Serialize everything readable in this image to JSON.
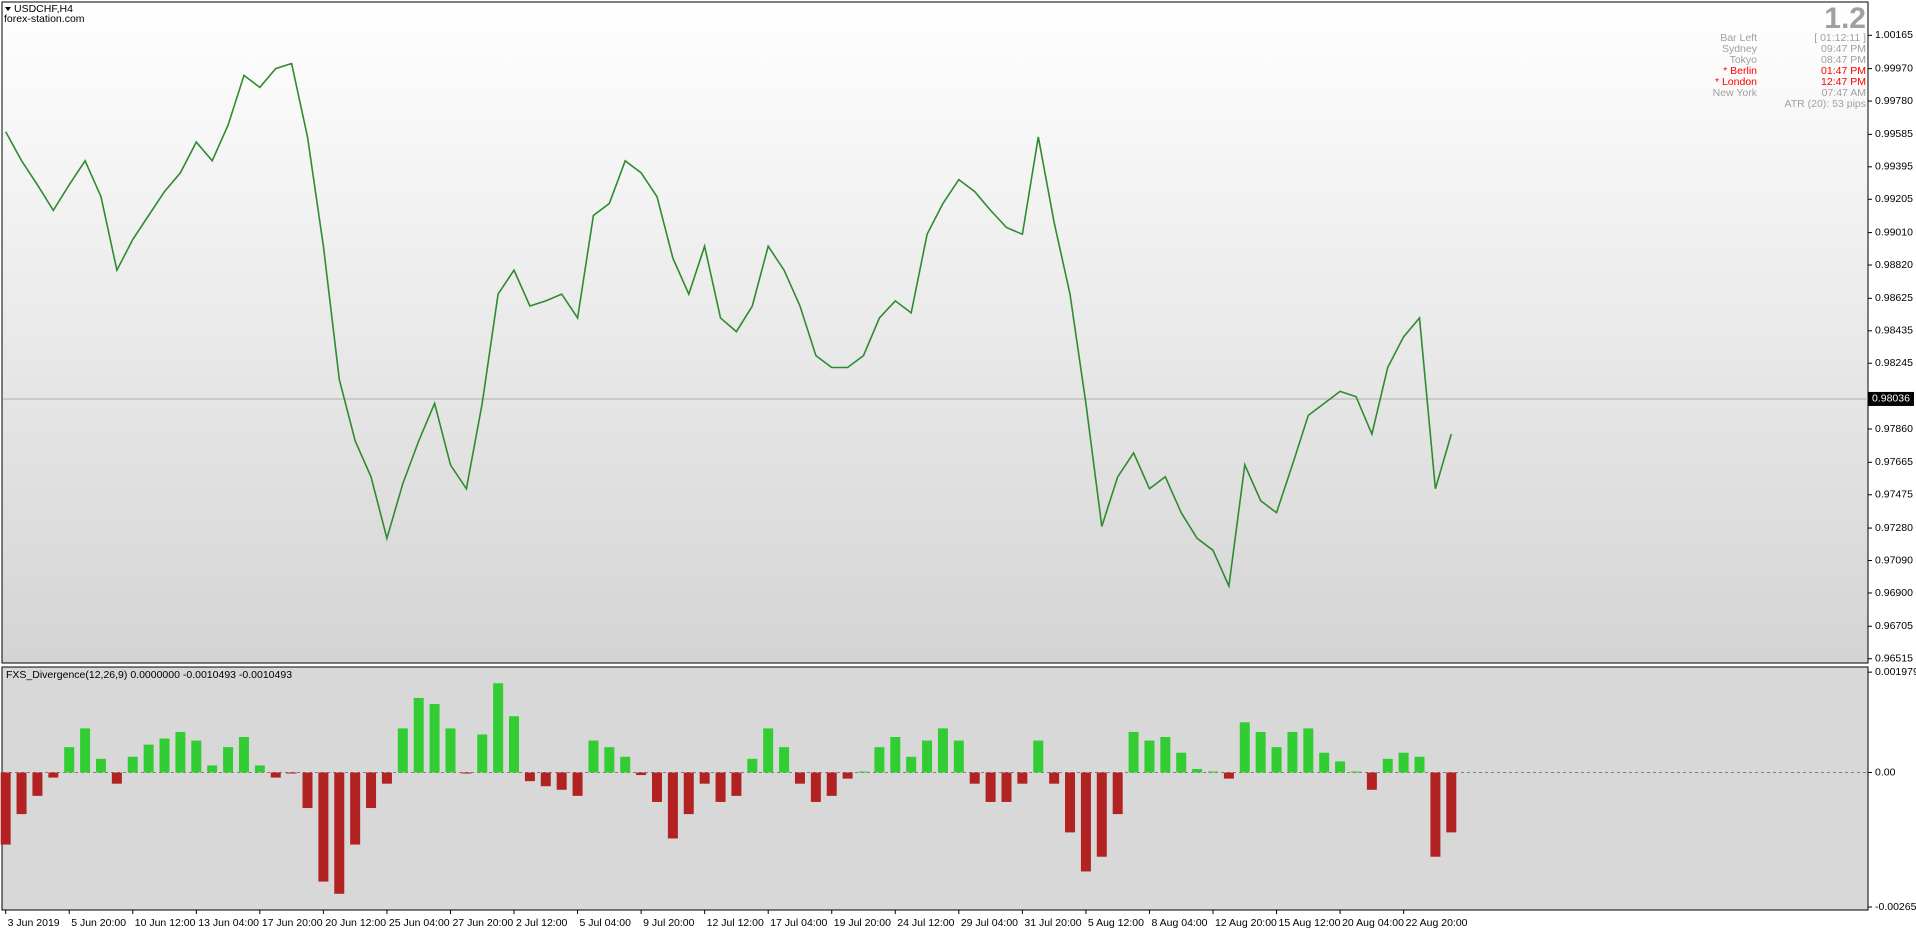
{
  "chart_data": [
    {
      "type": "line",
      "title": "USDCHF,H4",
      "subtitle": "forex-station.com",
      "color": "#2e8b2e",
      "categories": [
        "3 Jun 2019",
        null,
        null,
        null,
        "5 Jun 20:00",
        null,
        null,
        null,
        "10 Jun 12:00",
        null,
        null,
        null,
        "13 Jun 04:00",
        null,
        null,
        null,
        "17 Jun 20:00",
        null,
        null,
        null,
        "20 Jun 12:00",
        null,
        null,
        null,
        "25 Jun 04:00",
        null,
        null,
        null,
        "27 Jun 20:00",
        null,
        null,
        null,
        "2 Jul 12:00",
        null,
        null,
        null,
        "5 Jul 04:00",
        null,
        null,
        null,
        "9 Jul 20:00",
        null,
        null,
        null,
        "12 Jul 12:00",
        null,
        null,
        null,
        "17 Jul 04:00",
        null,
        null,
        null,
        "19 Jul 20:00",
        null,
        null,
        null,
        "24 Jul 12:00",
        null,
        null,
        null,
        "29 Jul 04:00",
        null,
        null,
        null,
        "31 Jul 20:00",
        null,
        null,
        null,
        "5 Aug 12:00",
        null,
        null,
        null,
        "8 Aug 04:00",
        null,
        null,
        null,
        "12 Aug 20:00",
        null,
        null,
        null,
        "15 Aug 12:00",
        null,
        null,
        null,
        "20 Aug 04:00",
        null,
        null,
        null,
        "22 Aug 20:00",
        null,
        null,
        null
      ],
      "values": [
        0.996,
        0.9943,
        0.9929,
        0.9914,
        0.9929,
        0.9943,
        0.9922,
        0.9879,
        0.9897,
        0.9911,
        0.9925,
        0.9936,
        0.9954,
        0.9943,
        0.9964,
        0.9993,
        0.9986,
        0.9997,
        1.0,
        0.9957,
        0.9893,
        0.9815,
        0.9779,
        0.9758,
        0.9722,
        0.9754,
        0.9779,
        0.9801,
        0.9765,
        0.9751,
        0.9801,
        0.9865,
        0.9879,
        0.9858,
        0.9861,
        0.9865,
        0.9851,
        0.9911,
        0.9918,
        0.9943,
        0.9936,
        0.9922,
        0.9886,
        0.9865,
        0.9893,
        0.9851,
        0.9843,
        0.9858,
        0.9893,
        0.9879,
        0.9858,
        0.9829,
        0.9822,
        0.9822,
        0.9829,
        0.9851,
        0.9861,
        0.9854,
        0.99,
        0.9918,
        0.9932,
        0.9925,
        0.9914,
        0.9904,
        0.99,
        0.9957,
        0.9907,
        0.9865,
        0.9801,
        0.9729,
        0.9758,
        0.9772,
        0.9751,
        0.9758,
        0.9737,
        0.9722,
        0.9715,
        0.9694,
        0.9765,
        0.9744,
        0.9737,
        0.9765,
        0.9794,
        0.9801,
        0.9808,
        0.9805,
        0.9783,
        0.9822,
        0.984,
        0.9851,
        0.9751,
        0.9783
      ],
      "ylim": [
        0.9649,
        1.0036
      ],
      "yticks": [
        1.00165,
        {
          "value": 0.9997,
          "label": "0.99970"
        },
        {
          "value": 0.9978,
          "label": "0.99780"
        },
        0.99585,
        0.99395,
        0.99205,
        {
          "value": 0.9901,
          "label": "0.99010"
        },
        {
          "value": 0.9882,
          "label": "0.98820"
        },
        0.98625,
        0.98435,
        0.98245,
        {
          "value": 0.9786,
          "label": "0.97860"
        },
        0.97665,
        0.97475,
        {
          "value": 0.9728,
          "label": "0.97280"
        },
        {
          "value": 0.9709,
          "label": "0.97090"
        },
        {
          "value": 0.969,
          "label": "0.96900"
        },
        0.96705,
        0.96515
      ],
      "current_price": 0.98036,
      "info_panel": {
        "version": "1.2",
        "rows": [
          {
            "label": "Bar Left",
            "value": "[ 01:12:11 ]",
            "color": "#a0a0a0"
          },
          {
            "label": "Sydney",
            "value": "09:47 PM",
            "color": "#a0a0a0"
          },
          {
            "label": "Tokyo",
            "value": "08:47 PM",
            "color": "#a0a0a0"
          },
          {
            "label": "* Berlin",
            "value": "01:47 PM",
            "color": "#ff0000"
          },
          {
            "label": "* London",
            "value": "12:47 PM",
            "color": "#ff0000"
          },
          {
            "label": "New York",
            "value": "07:47 AM",
            "color": "#a0a0a0"
          }
        ],
        "footer": "ATR (20): 53 pips"
      }
    },
    {
      "type": "bar",
      "title": "FXS_Divergence(12,26,9) 0.0000000 -0.0010493 -0.0010493",
      "colors": {
        "up": "#32cd32",
        "down": "#b22222"
      },
      "values": [
        -0.00142,
        -0.00082,
        -0.00046,
        -0.0001,
        0.0005,
        0.00087,
        0.00027,
        -0.00022,
        0.00031,
        0.00055,
        0.00067,
        0.0008,
        0.00063,
        0.00014,
        0.0005,
        0.0007,
        0.00014,
        -0.0001,
        -2e-05,
        -0.0007,
        -0.00215,
        -0.00239,
        -0.00142,
        -0.0007,
        -0.00022,
        0.00087,
        0.00147,
        0.00135,
        0.00087,
        -2e-05,
        0.00075,
        0.00176,
        0.00111,
        -0.00017,
        -0.00027,
        -0.00034,
        -0.00046,
        0.00063,
        0.0005,
        0.00031,
        -5e-05,
        -0.00058,
        -0.0013,
        -0.00082,
        -0.00022,
        -0.00058,
        -0.00046,
        0.00027,
        0.00087,
        0.0005,
        -0.00022,
        -0.00058,
        -0.00046,
        -0.00012,
        2e-05,
        0.0005,
        0.0007,
        0.00031,
        0.00063,
        0.00087,
        0.00063,
        -0.00022,
        -0.00058,
        -0.00058,
        -0.00022,
        0.00063,
        -0.00022,
        -0.00118,
        -0.00195,
        -0.00166,
        -0.00082,
        0.0008,
        0.00063,
        0.0007,
        0.00039,
        7e-05,
        2e-05,
        -0.00012,
        0.00099,
        0.0008,
        0.0005,
        0.0008,
        0.00087,
        0.00039,
        0.00022,
        2e-05,
        -0.00034,
        0.00027,
        0.00039,
        0.00031,
        -0.00166,
        -0.00118
      ],
      "ylim": [
        -0.00271,
        0.00208
      ],
      "yticks": [
        0.001979,
        {
          "value": 0,
          "label": "0.00"
        },
        -0.002651
      ]
    }
  ]
}
